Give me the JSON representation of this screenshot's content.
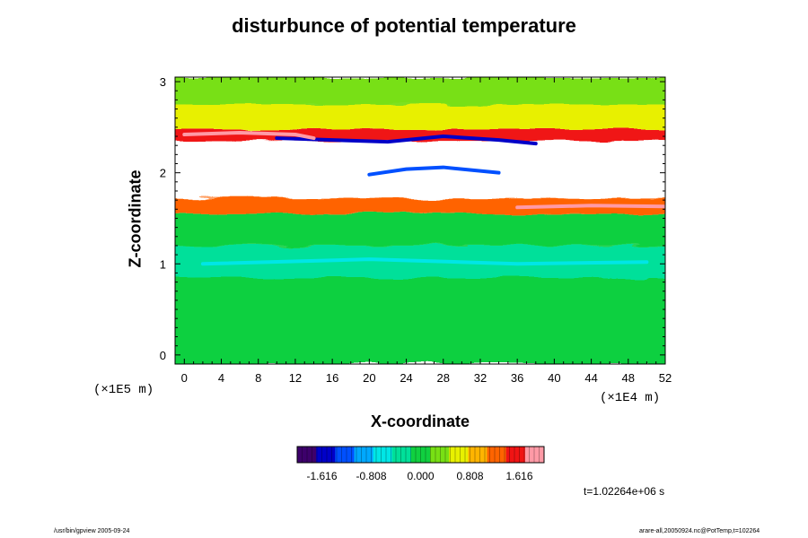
{
  "page": {
    "unit_y": "(×1E5 m)",
    "unit_x": "(×1E4 m)",
    "time_label": "t=1.02264e+06 s",
    "footer_left": "/usr/bin/gpview 2005-09-24",
    "footer_right": "arare-all,20050924.nc@PotTemp,t=102264"
  },
  "chart_data": {
    "type": "heatmap",
    "title": "disturbunce of potential temperature",
    "xlabel": "X-coordinate",
    "ylabel": "Z-coordinate",
    "x_range": [
      -1,
      52
    ],
    "y_range": [
      -0.1,
      3.05
    ],
    "x_ticks": [
      0,
      4,
      8,
      12,
      16,
      20,
      24,
      28,
      32,
      36,
      40,
      44,
      48,
      52
    ],
    "y_ticks": [
      0,
      1,
      2,
      3
    ],
    "colorbar": {
      "min": -2.02,
      "max": 2.02,
      "tick_values": [
        -1.616,
        -0.808,
        0.0,
        0.808,
        1.616
      ],
      "tick_labels": [
        "-1.616",
        "-0.808",
        "0.000",
        "0.808",
        "1.616"
      ],
      "colors": [
        "#3d006b",
        "#0000c8",
        "#0050ff",
        "#00a8ff",
        "#00e6e6",
        "#00e09a",
        "#10d040",
        "#78e014",
        "#e8f000",
        "#ffb400",
        "#ff6400",
        "#f01414",
        "#ff9aa6"
      ]
    },
    "field_bands": [
      {
        "z_from": -0.1,
        "z_to": 0.85,
        "value": 0.0
      },
      {
        "z_from": 0.85,
        "z_to": 1.2,
        "value": -0.35
      },
      {
        "z_from": 1.2,
        "z_to": 1.55,
        "value": -0.15
      },
      {
        "z_from": 1.55,
        "z_to": 1.72,
        "value": 1.1
      },
      {
        "z_from": 1.72,
        "z_to": 2.35,
        "value": 2.5
      },
      {
        "z_from": 2.35,
        "z_to": 2.48,
        "value": 1.6
      },
      {
        "z_from": 2.48,
        "z_to": 2.75,
        "value": 0.55
      },
      {
        "z_from": 2.75,
        "z_to": 3.05,
        "value": 0.3
      }
    ],
    "features": [
      {
        "x": [
          10,
          22,
          28,
          34,
          38
        ],
        "z": [
          2.38,
          2.34,
          2.4,
          2.36,
          2.32
        ],
        "value": -1.7
      },
      {
        "x": [
          0,
          6,
          12,
          14
        ],
        "z": [
          2.42,
          2.44,
          2.42,
          2.38
        ],
        "value": 1.9
      },
      {
        "x": [
          36,
          44,
          52
        ],
        "z": [
          1.62,
          1.64,
          1.63
        ],
        "value": 1.9
      },
      {
        "x": [
          2,
          20,
          36,
          50
        ],
        "z": [
          1.0,
          1.05,
          1.0,
          1.02
        ],
        "value": -0.7
      },
      {
        "x": [
          20,
          24,
          28,
          34
        ],
        "z": [
          1.98,
          2.04,
          2.06,
          2.0
        ],
        "value": -1.2
      }
    ]
  }
}
